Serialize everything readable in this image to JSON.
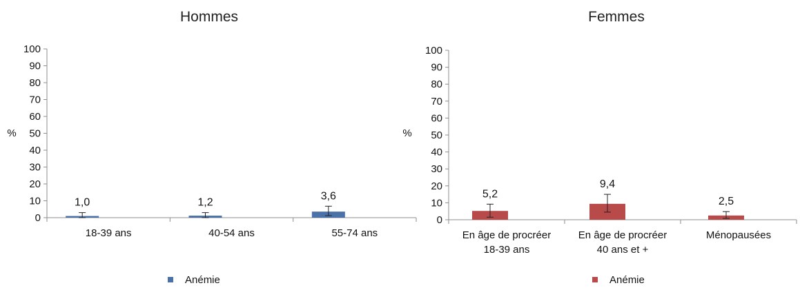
{
  "chart_data": [
    {
      "type": "bar",
      "title": "Hommes",
      "ylabel": "%",
      "xlabel": "",
      "ylim": [
        0,
        100
      ],
      "yticks": [
        0,
        10,
        20,
        30,
        40,
        50,
        60,
        70,
        80,
        90,
        100
      ],
      "categories": [
        [
          "18-39 ans"
        ],
        [
          "40-54 ans"
        ],
        [
          "55-74 ans"
        ]
      ],
      "series": [
        {
          "name": "Anémie",
          "color": "#4a72a8",
          "values": [
            1.0,
            1.2,
            3.6
          ],
          "labels": [
            "1,0",
            "1,2",
            "3,6"
          ],
          "error_low": [
            0.0,
            0.0,
            1.2
          ],
          "error_high": [
            3.0,
            3.0,
            6.8
          ]
        }
      ],
      "legend": "bottom",
      "grid": false
    },
    {
      "type": "bar",
      "title": "Femmes",
      "ylabel": "%",
      "xlabel": "",
      "ylim": [
        0,
        100
      ],
      "yticks": [
        0,
        10,
        20,
        30,
        40,
        50,
        60,
        70,
        80,
        90,
        100
      ],
      "categories": [
        [
          "En âge de procréer",
          "18-39 ans"
        ],
        [
          "En âge de procréer",
          "40 ans et +"
        ],
        [
          "Ménopausées"
        ]
      ],
      "series": [
        {
          "name": "Anémie",
          "color": "#b94a4a",
          "values": [
            5.2,
            9.4,
            2.5
          ],
          "labels": [
            "5,2",
            "9,4",
            "2,5"
          ],
          "error_low": [
            1.5,
            4.5,
            0.8
          ],
          "error_high": [
            9.2,
            15.0,
            4.8
          ]
        }
      ],
      "legend": "bottom",
      "grid": false
    }
  ]
}
